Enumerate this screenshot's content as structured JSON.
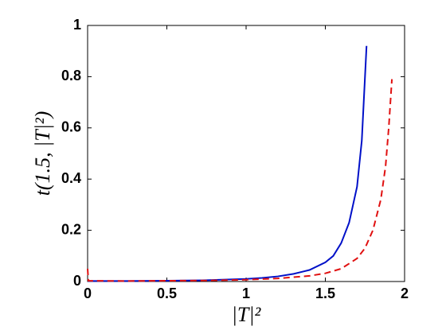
{
  "chart_data": {
    "type": "line",
    "x_label": "|T|²",
    "y_label": "t(1.5, |T|²)",
    "xlim": [
      0,
      2
    ],
    "xticks": [
      0,
      0.5,
      1,
      1.5,
      2
    ],
    "ylim": [
      0,
      1
    ],
    "yticks": [
      0,
      0.2,
      0.4,
      0.6,
      0.8,
      1
    ],
    "grid": false,
    "box": true,
    "series": [
      {
        "color": "#0010c8",
        "linestyle": "solid",
        "x": [
          0,
          0.25,
          0.5,
          0.75,
          1.0,
          1.1,
          1.2,
          1.3,
          1.4,
          1.5,
          1.55,
          1.6,
          1.65,
          1.7,
          1.73,
          1.76
        ],
        "values": [
          0.002,
          0.002,
          0.003,
          0.005,
          0.01,
          0.014,
          0.02,
          0.03,
          0.045,
          0.075,
          0.1,
          0.15,
          0.23,
          0.37,
          0.55,
          0.92
        ]
      },
      {
        "color": "#e01010",
        "linestyle": "dashed",
        "x": [
          0,
          0.005,
          0.25,
          0.5,
          0.75,
          1.0,
          1.2,
          1.4,
          1.5,
          1.6,
          1.7,
          1.75,
          1.8,
          1.85,
          1.88,
          1.9,
          1.92
        ],
        "values": [
          0.05,
          0.003,
          0.002,
          0.003,
          0.004,
          0.007,
          0.012,
          0.022,
          0.032,
          0.05,
          0.09,
          0.13,
          0.2,
          0.32,
          0.45,
          0.6,
          0.79
        ]
      }
    ]
  }
}
